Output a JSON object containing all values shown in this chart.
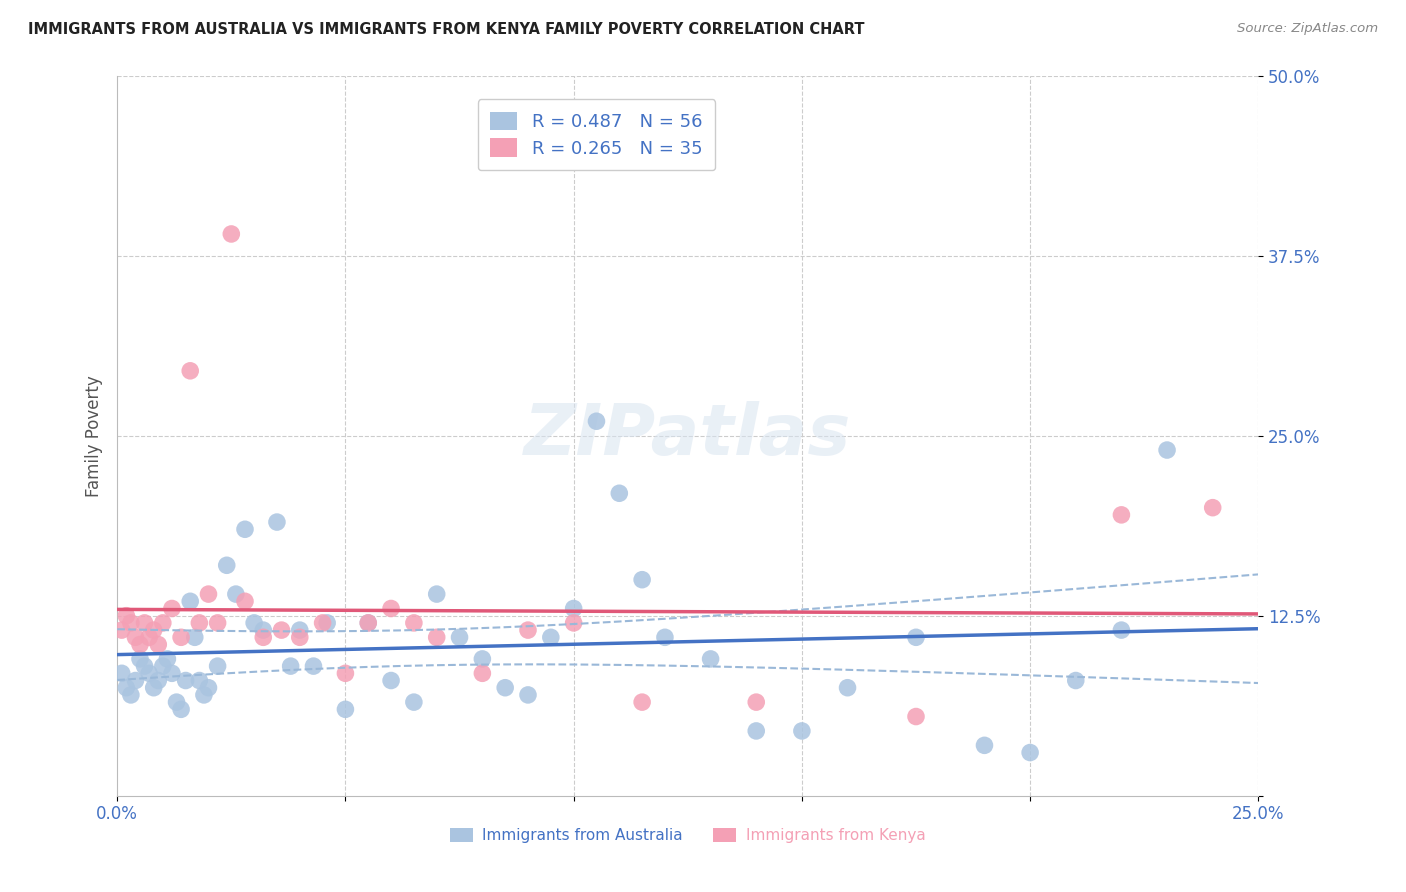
{
  "title": "IMMIGRANTS FROM AUSTRALIA VS IMMIGRANTS FROM KENYA FAMILY POVERTY CORRELATION CHART",
  "source": "Source: ZipAtlas.com",
  "ylabel": "Family Poverty",
  "xlim": [
    0,
    0.25
  ],
  "ylim": [
    0,
    0.5
  ],
  "ytick_vals": [
    0.0,
    0.125,
    0.25,
    0.375,
    0.5
  ],
  "ytick_labels": [
    "",
    "12.5%",
    "25.0%",
    "37.5%",
    "50.0%"
  ],
  "xtick_vals": [
    0.0,
    0.05,
    0.1,
    0.15,
    0.2,
    0.25
  ],
  "xtick_labels": [
    "0.0%",
    "",
    "",
    "",
    "",
    "25.0%"
  ],
  "legend_label1": "Immigrants from Australia",
  "legend_label2": "Immigrants from Kenya",
  "legend_r1": "R = 0.487",
  "legend_n1": "N = 56",
  "legend_r2": "R = 0.265",
  "legend_n2": "N = 35",
  "australia_color": "#aac4e0",
  "kenya_color": "#f4a0b5",
  "trendline_aus_color": "#4472c4",
  "trendline_ken_color": "#e05878",
  "confband_color": "#9ab8d8",
  "background_color": "#ffffff",
  "grid_color": "#cccccc",
  "axis_label_color": "#4472c4",
  "title_color": "#222222",
  "watermark_color": "#d8e4f0",
  "australia_x": [
    0.001,
    0.002,
    0.003,
    0.004,
    0.005,
    0.006,
    0.007,
    0.008,
    0.009,
    0.01,
    0.011,
    0.012,
    0.013,
    0.014,
    0.015,
    0.016,
    0.017,
    0.018,
    0.019,
    0.02,
    0.022,
    0.024,
    0.026,
    0.028,
    0.03,
    0.032,
    0.035,
    0.038,
    0.04,
    0.043,
    0.046,
    0.05,
    0.055,
    0.06,
    0.065,
    0.07,
    0.075,
    0.08,
    0.085,
    0.09,
    0.095,
    0.1,
    0.105,
    0.11,
    0.115,
    0.12,
    0.13,
    0.14,
    0.15,
    0.16,
    0.175,
    0.19,
    0.2,
    0.21,
    0.22,
    0.23
  ],
  "australia_y": [
    0.085,
    0.075,
    0.07,
    0.08,
    0.095,
    0.09,
    0.085,
    0.075,
    0.08,
    0.09,
    0.095,
    0.085,
    0.065,
    0.06,
    0.08,
    0.135,
    0.11,
    0.08,
    0.07,
    0.075,
    0.09,
    0.16,
    0.14,
    0.185,
    0.12,
    0.115,
    0.19,
    0.09,
    0.115,
    0.09,
    0.12,
    0.06,
    0.12,
    0.08,
    0.065,
    0.14,
    0.11,
    0.095,
    0.075,
    0.07,
    0.11,
    0.13,
    0.26,
    0.21,
    0.15,
    0.11,
    0.095,
    0.045,
    0.045,
    0.075,
    0.11,
    0.035,
    0.03,
    0.08,
    0.115,
    0.24
  ],
  "kenya_x": [
    0.001,
    0.002,
    0.003,
    0.004,
    0.005,
    0.006,
    0.007,
    0.008,
    0.009,
    0.01,
    0.012,
    0.014,
    0.016,
    0.018,
    0.02,
    0.022,
    0.025,
    0.028,
    0.032,
    0.036,
    0.04,
    0.045,
    0.05,
    0.055,
    0.06,
    0.065,
    0.07,
    0.08,
    0.09,
    0.1,
    0.115,
    0.14,
    0.175,
    0.22,
    0.24
  ],
  "kenya_y": [
    0.115,
    0.125,
    0.12,
    0.11,
    0.105,
    0.12,
    0.11,
    0.115,
    0.105,
    0.12,
    0.13,
    0.11,
    0.295,
    0.12,
    0.14,
    0.12,
    0.39,
    0.135,
    0.11,
    0.115,
    0.11,
    0.12,
    0.085,
    0.12,
    0.13,
    0.12,
    0.11,
    0.085,
    0.115,
    0.12,
    0.065,
    0.065,
    0.055,
    0.195,
    0.2
  ]
}
